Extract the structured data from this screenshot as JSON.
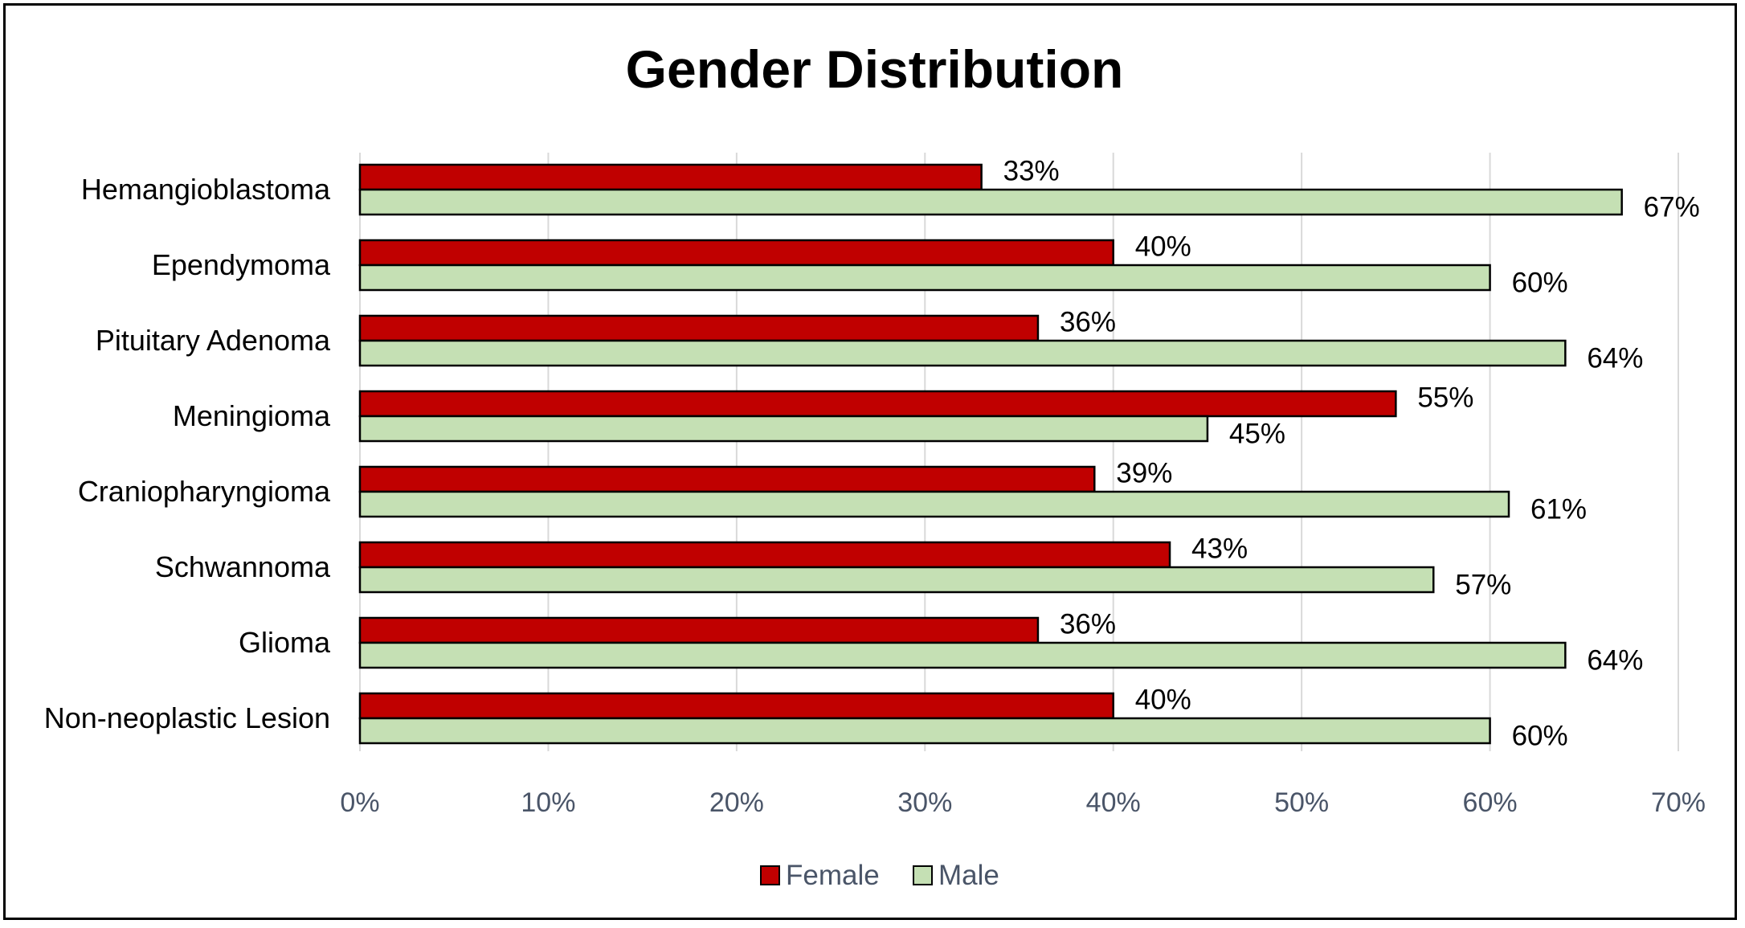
{
  "chart_data": {
    "type": "bar",
    "orientation": "horizontal",
    "title": "Gender Distribution",
    "xlabel": "",
    "ylabel": "",
    "categories": [
      "Hemangioblastoma",
      "Ependymoma",
      "Pituitary Adenoma",
      "Meningioma",
      "Craniopharyngioma",
      "Schwannoma",
      "Glioma",
      "Non-neoplastic Lesion"
    ],
    "series": [
      {
        "name": "Female",
        "color": "#c00000",
        "values": [
          33,
          40,
          36,
          55,
          39,
          43,
          36,
          40
        ],
        "labels": [
          "33%",
          "40%",
          "36%",
          "55%",
          "39%",
          "43%",
          "36%",
          "40%"
        ]
      },
      {
        "name": "Male",
        "color": "#c5e0b4",
        "values": [
          67,
          60,
          64,
          45,
          61,
          57,
          64,
          60
        ],
        "labels": [
          "67%",
          "60%",
          "64%",
          "45%",
          "61%",
          "57%",
          "64%",
          "60%"
        ]
      }
    ],
    "xlim": [
      0,
      70
    ],
    "xticks": [
      0,
      10,
      20,
      30,
      40,
      50,
      60,
      70
    ],
    "xtick_labels": [
      "0%",
      "10%",
      "20%",
      "30%",
      "40%",
      "50%",
      "60%",
      "70%"
    ],
    "grid": "vertical",
    "legend": "bottom"
  }
}
